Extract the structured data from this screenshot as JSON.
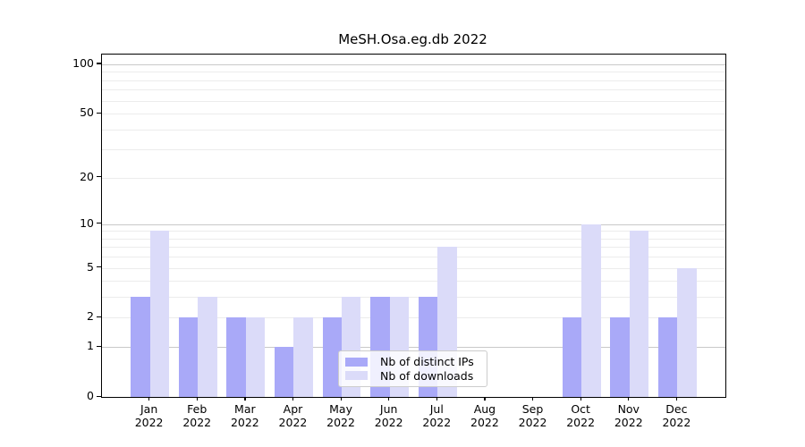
{
  "title": "MeSH.Osa.eg.db 2022",
  "colors": {
    "series_distinct_ips": "#a9a9f8",
    "series_downloads": "#dbdbf9",
    "major_gridline": "#c9c9c9",
    "minor_gridline": "#ececec",
    "axis_spine": "#000000",
    "background": "#ffffff"
  },
  "legend": {
    "items": [
      {
        "label": "Nb of distinct IPs",
        "color": "#a9a9f8"
      },
      {
        "label": "Nb of downloads",
        "color": "#dbdbf9"
      }
    ]
  },
  "chart_data": {
    "type": "bar",
    "title": "MeSH.Osa.eg.db 2022",
    "xlabel": "",
    "ylabel": "",
    "x_tick_month": [
      "Jan",
      "Feb",
      "Mar",
      "Apr",
      "May",
      "Jun",
      "Jul",
      "Aug",
      "Sep",
      "Oct",
      "Nov",
      "Dec"
    ],
    "x_tick_year": "2022",
    "categories": [
      "Jan 2022",
      "Feb 2022",
      "Mar 2022",
      "Apr 2022",
      "May 2022",
      "Jun 2022",
      "Jul 2022",
      "Aug 2022",
      "Sep 2022",
      "Oct 2022",
      "Nov 2022",
      "Dec 2022"
    ],
    "series": [
      {
        "name": "Nb of distinct IPs",
        "color": "#a9a9f8",
        "values": [
          3,
          2,
          2,
          1,
          2,
          3,
          3,
          0,
          0,
          2,
          2,
          2
        ]
      },
      {
        "name": "Nb of downloads",
        "color": "#dbdbf9",
        "values": [
          9,
          3,
          2,
          2,
          3,
          3,
          7,
          0,
          0,
          10,
          9,
          5
        ]
      }
    ],
    "y_axis": {
      "scale": "log1p",
      "tick_values": [
        0,
        1,
        2,
        5,
        10,
        20,
        50,
        100
      ],
      "tick_labels": [
        "0",
        "1",
        "2",
        "5",
        "10",
        "20",
        "50",
        "100"
      ],
      "major_gridlines": [
        1,
        10,
        100
      ],
      "minor_gridlines": [
        2,
        3,
        4,
        5,
        6,
        7,
        8,
        9,
        20,
        30,
        40,
        50,
        60,
        70,
        80,
        90
      ],
      "ylim": [
        0,
        115
      ]
    },
    "legend_position": "lower center",
    "grid": "on"
  }
}
